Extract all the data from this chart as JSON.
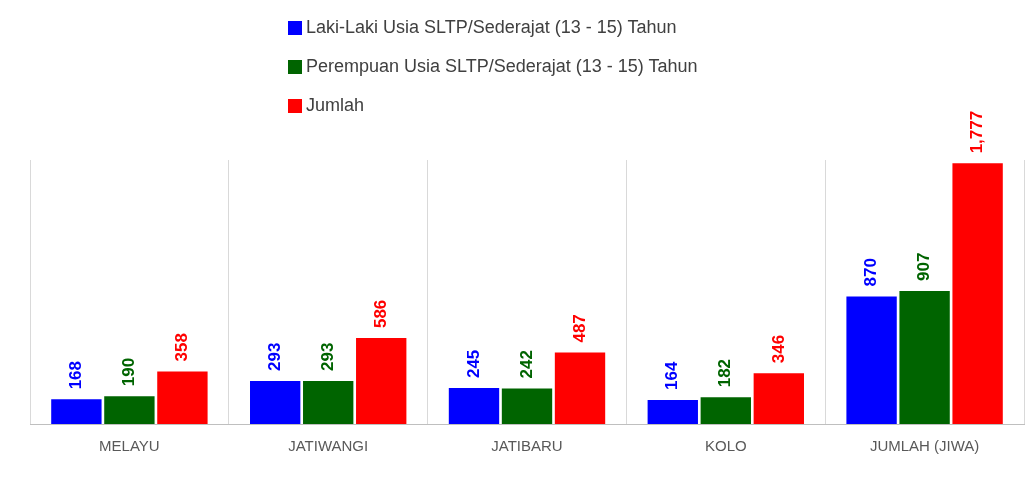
{
  "chart_data": {
    "type": "bar",
    "categories": [
      "MELAYU",
      "JATIWANGI",
      "JATIBARU",
      "KOLO",
      "JUMLAH (JIWA)"
    ],
    "series": [
      {
        "name": "Laki-Laki Usia SLTP/Sederajat (13 - 15) Tahun",
        "color": "#0000ff",
        "values": [
          168,
          293,
          245,
          164,
          870
        ]
      },
      {
        "name": "Perempuan Usia SLTP/Sederajat (13 - 15) Tahun",
        "color": "#006400",
        "values": [
          190,
          293,
          242,
          182,
          907
        ]
      },
      {
        "name": "Jumlah",
        "color": "#ff0000",
        "values": [
          358,
          586,
          487,
          346,
          1777
        ],
        "value_labels": [
          "358",
          "586",
          "487",
          "346",
          "1,777"
        ]
      }
    ],
    "data_labels": true,
    "grid": "x",
    "legend": "top"
  }
}
